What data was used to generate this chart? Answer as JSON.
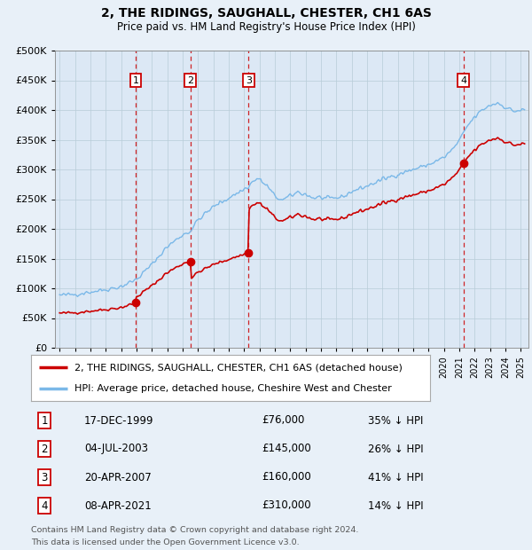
{
  "title": "2, THE RIDINGS, SAUGHALL, CHESTER, CH1 6AS",
  "subtitle": "Price paid vs. HM Land Registry's House Price Index (HPI)",
  "legend_label_red": "2, THE RIDINGS, SAUGHALL, CHESTER, CH1 6AS (detached house)",
  "legend_label_blue": "HPI: Average price, detached house, Cheshire West and Chester",
  "footer_line1": "Contains HM Land Registry data © Crown copyright and database right 2024.",
  "footer_line2": "This data is licensed under the Open Government Licence v3.0.",
  "transactions": [
    {
      "num": 1,
      "date": "17-DEC-1999",
      "date_x": 1999.96,
      "price": 76000,
      "pct": "35% ↓ HPI"
    },
    {
      "num": 2,
      "date": "04-JUL-2003",
      "date_x": 2003.5,
      "price": 145000,
      "pct": "26% ↓ HPI"
    },
    {
      "num": 3,
      "date": "20-APR-2007",
      "date_x": 2007.3,
      "price": 160000,
      "pct": "41% ↓ HPI"
    },
    {
      "num": 4,
      "date": "08-APR-2021",
      "date_x": 2021.27,
      "price": 310000,
      "pct": "14% ↓ HPI"
    }
  ],
  "hpi_color": "#7ab8e8",
  "price_color": "#cc0000",
  "vline_color": "#cc0000",
  "box_color": "#cc0000",
  "background_color": "#e8f0f8",
  "plot_bg_color": "#dce8f5",
  "ylim": [
    0,
    500000
  ],
  "yticks": [
    0,
    50000,
    100000,
    150000,
    200000,
    250000,
    300000,
    350000,
    400000,
    450000,
    500000
  ],
  "xlim_start": 1994.7,
  "xlim_end": 2025.5,
  "xticks": [
    1995,
    1996,
    1997,
    1998,
    1999,
    2000,
    2001,
    2002,
    2003,
    2004,
    2005,
    2006,
    2007,
    2008,
    2009,
    2010,
    2011,
    2012,
    2013,
    2014,
    2015,
    2016,
    2017,
    2018,
    2019,
    2020,
    2021,
    2022,
    2023,
    2024,
    2025
  ]
}
